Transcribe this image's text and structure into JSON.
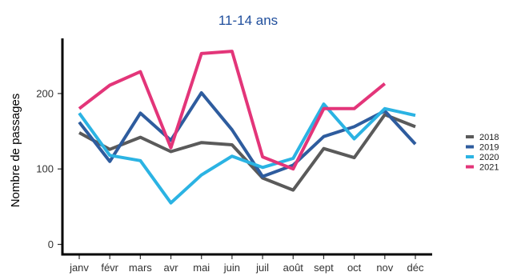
{
  "chart_data": {
    "type": "line",
    "title": "11-14 ans",
    "xlabel": "",
    "ylabel": "Nombre de passages",
    "categories": [
      "janv",
      "févr",
      "mars",
      "avr",
      "mai",
      "juin",
      "juil",
      "août",
      "sept",
      "oct",
      "nov",
      "déc"
    ],
    "ylim": [
      0,
      270
    ],
    "yticks": [
      0,
      100,
      200
    ],
    "grid": false,
    "legend_position": "right",
    "series": [
      {
        "name": "2018",
        "color": "#5a5a5a",
        "values": [
          148,
          126,
          142,
          123,
          135,
          132,
          88,
          72,
          127,
          115,
          172,
          156
        ]
      },
      {
        "name": "2019",
        "color": "#2e5c9e",
        "values": [
          162,
          110,
          174,
          138,
          201,
          152,
          90,
          105,
          143,
          156,
          177,
          133
        ]
      },
      {
        "name": "2020",
        "color": "#2bb3e3",
        "values": [
          174,
          118,
          111,
          55,
          92,
          117,
          102,
          114,
          186,
          140,
          180,
          171
        ]
      },
      {
        "name": "2021",
        "color": "#e33579",
        "values": [
          180,
          211,
          229,
          128,
          253,
          256,
          116,
          100,
          180,
          180,
          213,
          null
        ]
      }
    ]
  }
}
